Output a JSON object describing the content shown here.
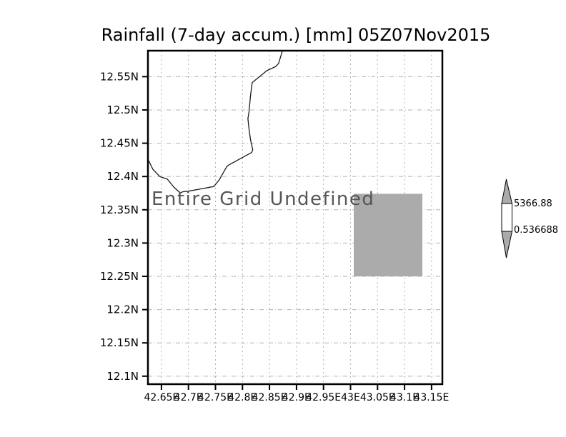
{
  "title": "Rainfall (7-day accum.) [mm] 05Z07Nov2015",
  "undefined_message": "Entire Grid Undefined",
  "colorbar": {
    "max_label": "5366.88",
    "min_label": "0.536688",
    "above_color": "#ababab",
    "range_color": "#ffffff",
    "below_color": "#ababab"
  },
  "colors": {
    "background": "#ffffff",
    "frame": "#000000",
    "gridline": "#b2b2b2",
    "coastline": "#1a1a1a",
    "shaded_cell": "#ababab",
    "tick_label": "#000000",
    "undefined_text": "#565656"
  },
  "chart_data": {
    "type": "map",
    "title": "Rainfall (7-day accum.) [mm] 05Z07Nov2015",
    "x_tick_values": [
      42.65,
      42.7,
      42.75,
      42.8,
      42.85,
      42.9,
      42.95,
      43.0,
      43.05,
      43.1,
      43.15
    ],
    "x_tick_labels": [
      "42.65E",
      "42.7E",
      "42.75E",
      "42.8E",
      "42.85E",
      "42.9E",
      "42.95E",
      "43E",
      "43.05E",
      "43.1E",
      "43.15E"
    ],
    "y_tick_values": [
      12.55,
      12.5,
      12.45,
      12.4,
      12.35,
      12.3,
      12.25,
      12.2,
      12.15,
      12.1
    ],
    "y_tick_labels": [
      "12.55N",
      "12.5N",
      "12.45N",
      "12.4N",
      "12.35N",
      "12.3N",
      "12.25N",
      "12.2N",
      "12.15N",
      "12.1N"
    ],
    "xlim": [
      42.625,
      43.17
    ],
    "ylim": [
      12.088,
      12.589
    ],
    "grid": true,
    "annotation": "Entire Grid Undefined",
    "colorbar_levels": [
      0.536688,
      5366.88
    ],
    "shaded_cell": {
      "lon": [
        43.006,
        43.133
      ],
      "lat": [
        12.25,
        12.374
      ]
    },
    "coastline_lonlat": [
      [
        42.874,
        12.589
      ],
      [
        42.867,
        12.57
      ],
      [
        42.861,
        12.565
      ],
      [
        42.845,
        12.559
      ],
      [
        42.824,
        12.545
      ],
      [
        42.818,
        12.541
      ],
      [
        42.815,
        12.522
      ],
      [
        42.812,
        12.497
      ],
      [
        42.81,
        12.487
      ],
      [
        42.812,
        12.472
      ],
      [
        42.815,
        12.455
      ],
      [
        42.819,
        12.44
      ],
      [
        42.817,
        12.436
      ],
      [
        42.776,
        12.418
      ],
      [
        42.771,
        12.415
      ],
      [
        42.757,
        12.395
      ],
      [
        42.747,
        12.385
      ],
      [
        42.727,
        12.382
      ],
      [
        42.7,
        12.378
      ],
      [
        42.689,
        12.377
      ],
      [
        42.685,
        12.375
      ],
      [
        42.673,
        12.384
      ],
      [
        42.661,
        12.396
      ],
      [
        42.647,
        12.4
      ],
      [
        42.634,
        12.411
      ],
      [
        42.625,
        12.426
      ]
    ]
  }
}
